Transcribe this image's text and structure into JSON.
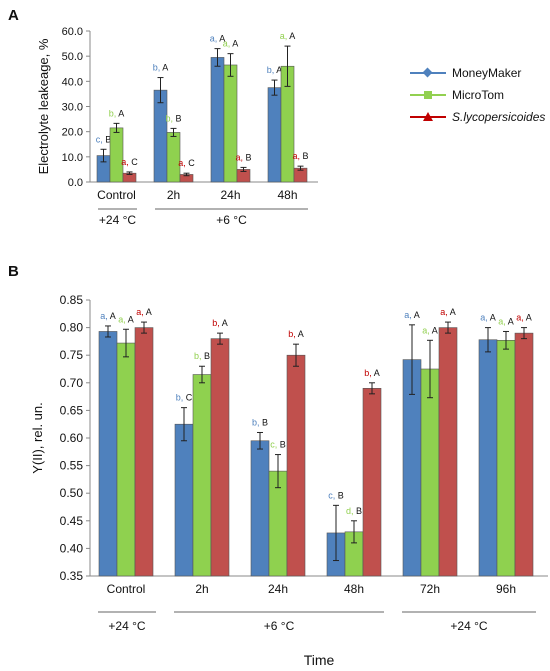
{
  "colors": {
    "moneymaker": "#4f81bd",
    "microtom": "#8fd14f",
    "slyco": "#c0504d",
    "slyco_a": "#c00000",
    "moneymaker_line": "#4f81bd",
    "microtom_line": "#92d050",
    "slyco_line": "#c00000"
  },
  "legend": {
    "items": [
      {
        "label": "MoneyMaker",
        "marker": "diamond",
        "italic": false
      },
      {
        "label": "MicroTom",
        "marker": "square",
        "italic": false
      },
      {
        "label": "S.lycopersicoides",
        "marker": "triangle",
        "italic": true
      }
    ]
  },
  "chart_data": [
    {
      "panel_label": "A",
      "type": "bar",
      "ylabel": "Electrolyte leakeage, %",
      "xlabel": "",
      "ylim": [
        0,
        60
      ],
      "yticks": [
        "0.0",
        "10.0",
        "20.0",
        "30.0",
        "40.0",
        "50.0",
        "60.0"
      ],
      "categories": [
        "Control",
        "2h",
        "24h",
        "48h"
      ],
      "groups": [
        {
          "label": "+24 °C",
          "span": [
            0,
            0
          ]
        },
        {
          "label": "+6 °C",
          "span": [
            1,
            3
          ]
        }
      ],
      "series": [
        {
          "name": "MoneyMaker",
          "values": [
            10.5,
            36.5,
            49.5,
            37.5
          ],
          "errors": [
            2.5,
            5.0,
            3.5,
            3.0
          ],
          "letters": [
            "c, B",
            "b, A",
            "a, A",
            "b, A"
          ]
        },
        {
          "name": "MicroTom",
          "values": [
            21.5,
            19.7,
            46.5,
            46.0
          ],
          "errors": [
            1.8,
            1.6,
            4.5,
            8.0
          ],
          "letters": [
            "b, A",
            "b, B",
            "a, A",
            "a, A"
          ]
        },
        {
          "name": "S.lycopersicoides",
          "values": [
            3.5,
            3.0,
            5.0,
            5.5
          ],
          "errors": [
            0.5,
            0.5,
            0.8,
            0.8
          ],
          "letters": [
            "a, C",
            "a, C",
            "a, B",
            "a, B"
          ]
        }
      ]
    },
    {
      "panel_label": "B",
      "type": "bar",
      "ylabel": "Y(II), rel. un.",
      "xlabel": "Time",
      "ylim": [
        0.35,
        0.85
      ],
      "yticks": [
        "0.35",
        "0.40",
        "0.45",
        "0.50",
        "0.55",
        "0.60",
        "0.65",
        "0.70",
        "0.75",
        "0.80",
        "0.85"
      ],
      "categories": [
        "Control",
        "2h",
        "24h",
        "48h",
        "72h",
        "96h"
      ],
      "groups": [
        {
          "label": "+24 °C",
          "span": [
            0,
            0
          ]
        },
        {
          "label": "+6 °C",
          "span": [
            1,
            3
          ]
        },
        {
          "label": "+24 °C",
          "span": [
            4,
            5
          ]
        }
      ],
      "series": [
        {
          "name": "MoneyMaker",
          "values": [
            0.793,
            0.625,
            0.595,
            0.428,
            0.742,
            0.778
          ],
          "errors": [
            0.01,
            0.03,
            0.015,
            0.05,
            0.063,
            0.022
          ],
          "letters": [
            "a, A",
            "b, C",
            "b, B",
            "c, B",
            "a, A",
            "a, A"
          ]
        },
        {
          "name": "MicroTom",
          "values": [
            0.772,
            0.715,
            0.54,
            0.43,
            0.725,
            0.777
          ],
          "errors": [
            0.025,
            0.015,
            0.03,
            0.02,
            0.052,
            0.016
          ],
          "letters": [
            "a, A",
            "b, B",
            "c, B",
            "d, B",
            "a, A",
            "a, A"
          ]
        },
        {
          "name": "S.lycopersicoides",
          "values": [
            0.8,
            0.78,
            0.75,
            0.69,
            0.8,
            0.79
          ],
          "errors": [
            0.01,
            0.01,
            0.02,
            0.01,
            0.01,
            0.01
          ],
          "letters": [
            "a, A",
            "b, A",
            "b, A",
            "b, A",
            "a, A",
            "a, A"
          ]
        }
      ]
    }
  ]
}
